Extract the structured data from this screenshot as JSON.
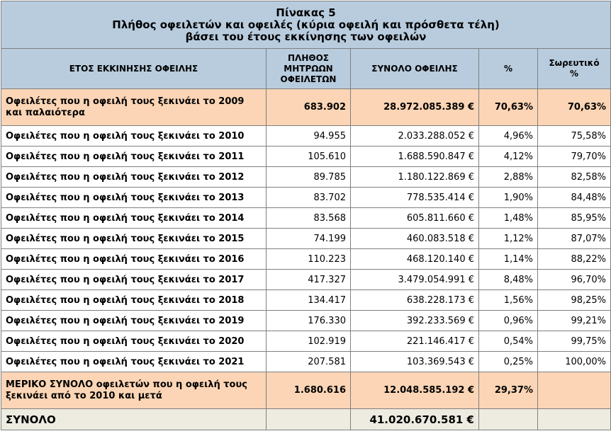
{
  "title_lines": [
    "Πίνακας 5",
    "Πλήθος οφειλετών και οφειλές (κύρια οφειλή και πρόσθετα τέλη)",
    "βάσει του έτους εκκίνησης των οφειλών"
  ],
  "headers": {
    "year": "ΕΤΟΣ ΕΚΚΙΝΗΣΗΣ ΟΦΕΙΛΗΣ",
    "count": "ΠΛΗΘΟΣ ΜΗΤΡΩΩΝ ΟΦΕΙΛΕΤΩΝ",
    "total": "ΣΥΝΟΛΟ ΟΦΕΙΛΗΣ",
    "pct": "%",
    "cum": "Σωρευτικό %"
  },
  "first_row": {
    "label": "Οφειλέτες που η οφειλή τους ξεκινάει το 2009 και παλαιότερα",
    "count": "683.902",
    "total": "28.972.085.389 €",
    "pct": "70,63%",
    "cum": "70,63%"
  },
  "rows": [
    {
      "label": "Οφειλέτες που η οφειλή τους ξεκινάει το 2010",
      "count": "94.955",
      "total": "2.033.288.052 €",
      "pct": "4,96%",
      "cum": "75,58%"
    },
    {
      "label": "Οφειλέτες που η οφειλή τους ξεκινάει το 2011",
      "count": "105.610",
      "total": "1.688.590.847 €",
      "pct": "4,12%",
      "cum": "79,70%"
    },
    {
      "label": "Οφειλέτες που η οφειλή τους ξεκινάει το 2012",
      "count": "89.785",
      "total": "1.180.122.869 €",
      "pct": "2,88%",
      "cum": "82,58%"
    },
    {
      "label": "Οφειλέτες που η οφειλή τους ξεκινάει το 2013",
      "count": "83.702",
      "total": "778.535.414 €",
      "pct": "1,90%",
      "cum": "84,48%"
    },
    {
      "label": "Οφειλέτες που η οφειλή τους ξεκινάει το 2014",
      "count": "83.568",
      "total": "605.811.660 €",
      "pct": "1,48%",
      "cum": "85,95%"
    },
    {
      "label": "Οφειλέτες που η οφειλή τους ξεκινάει το 2015",
      "count": "74.199",
      "total": "460.083.518 €",
      "pct": "1,12%",
      "cum": "87,07%"
    },
    {
      "label": "Οφειλέτες που η οφειλή τους ξεκινάει το 2016",
      "count": "110.223",
      "total": "468.120.140 €",
      "pct": "1,14%",
      "cum": "88,22%"
    },
    {
      "label": "Οφειλέτες που η οφειλή τους ξεκινάει το 2017",
      "count": "417.327",
      "total": "3.479.054.991 €",
      "pct": "8,48%",
      "cum": "96,70%"
    },
    {
      "label": "Οφειλέτες που η οφειλή τους ξεκινάει το 2018",
      "count": "134.417",
      "total": "638.228.173 €",
      "pct": "1,56%",
      "cum": "98,25%"
    },
    {
      "label": "Οφειλέτες που η οφειλή τους ξεκινάει το 2019",
      "count": "176.330",
      "total": "392.233.569 €",
      "pct": "0,96%",
      "cum": "99,21%"
    },
    {
      "label": "Οφειλέτες που η οφειλή τους ξεκινάει το 2020",
      "count": "102.919",
      "total": "221.146.417 €",
      "pct": "0,54%",
      "cum": "99,75%"
    },
    {
      "label": "Οφειλέτες που η οφειλή τους ξεκινάει το 2021",
      "count": "207.581",
      "total": "103.369.543 €",
      "pct": "0,25%",
      "cum": "100,00%"
    }
  ],
  "subtotal": {
    "label": "ΜΕΡΙΚΟ ΣΥΝΟΛΟ οφειλετών που η οφειλή τους ξεκινάει από το 2010 και μετά",
    "count": "1.680.616",
    "total": "12.048.585.192 €",
    "pct": "29,37%"
  },
  "grand_total": {
    "label": "ΣΥΝΟΛΟ",
    "total": "41.020.670.581 €"
  },
  "colors": {
    "header_bg": "#b8ccde",
    "highlight_bg": "#fbd5b5",
    "total_bg": "#eeece1",
    "border": "#7f7f7f"
  }
}
